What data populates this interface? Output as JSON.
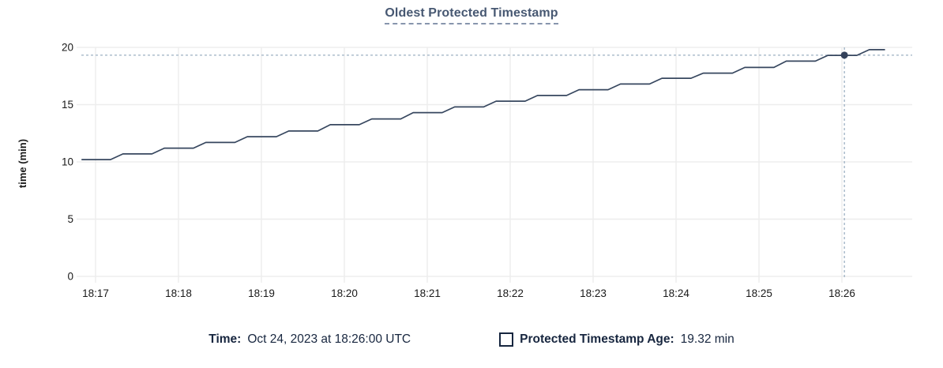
{
  "chart_data": {
    "type": "line",
    "title": "Oldest Protected Timestamp",
    "ylabel": "time (min)",
    "xlabel": "",
    "ylim": [
      0,
      20
    ],
    "y_ticks": [
      0,
      5,
      10,
      15,
      20
    ],
    "x_tick_labels": [
      "18:17",
      "18:18",
      "18:19",
      "18:20",
      "18:21",
      "18:22",
      "18:23",
      "18:24",
      "18:25",
      "18:26"
    ],
    "x_range_min_offset": [
      -0.17,
      9.85
    ],
    "grid": "on",
    "legend_position": "bottom",
    "series": [
      {
        "name": "Protected Timestamp Age",
        "unit": "min",
        "points": [
          [
            -0.17,
            10.2
          ],
          [
            0.18,
            10.2
          ],
          [
            0.33,
            10.7
          ],
          [
            0.68,
            10.7
          ],
          [
            0.83,
            11.2
          ],
          [
            1.18,
            11.2
          ],
          [
            1.33,
            11.7
          ],
          [
            1.68,
            11.7
          ],
          [
            1.83,
            12.2
          ],
          [
            2.18,
            12.2
          ],
          [
            2.33,
            12.7
          ],
          [
            2.68,
            12.7
          ],
          [
            2.83,
            13.25
          ],
          [
            3.18,
            13.25
          ],
          [
            3.33,
            13.75
          ],
          [
            3.68,
            13.75
          ],
          [
            3.83,
            14.3
          ],
          [
            4.18,
            14.3
          ],
          [
            4.33,
            14.8
          ],
          [
            4.68,
            14.8
          ],
          [
            4.83,
            15.3
          ],
          [
            5.18,
            15.3
          ],
          [
            5.33,
            15.8
          ],
          [
            5.68,
            15.8
          ],
          [
            5.83,
            16.3
          ],
          [
            6.18,
            16.3
          ],
          [
            6.33,
            16.8
          ],
          [
            6.68,
            16.8
          ],
          [
            6.83,
            17.3
          ],
          [
            7.18,
            17.3
          ],
          [
            7.33,
            17.75
          ],
          [
            7.68,
            17.75
          ],
          [
            7.83,
            18.25
          ],
          [
            8.18,
            18.25
          ],
          [
            8.33,
            18.8
          ],
          [
            8.68,
            18.8
          ],
          [
            8.83,
            19.3
          ],
          [
            9.18,
            19.3
          ],
          [
            9.33,
            19.8
          ],
          [
            9.52,
            19.8
          ]
        ]
      }
    ],
    "hover_point": {
      "x_min_offset": 9.03,
      "age_min": 19.32
    }
  },
  "legend": {
    "time_label": "Time:",
    "time_value": "Oct 24, 2023 at 18:26:00 UTC",
    "series_label": "Protected Timestamp Age:",
    "series_value": "19.32 min"
  },
  "colors": {
    "line": "#37475f",
    "dot": "#33415a",
    "grid": "#ededed",
    "crosshair": "#9db0c3",
    "axis_text": "#1a1a1a",
    "title": "#475872",
    "legend_text": "#17263f"
  }
}
